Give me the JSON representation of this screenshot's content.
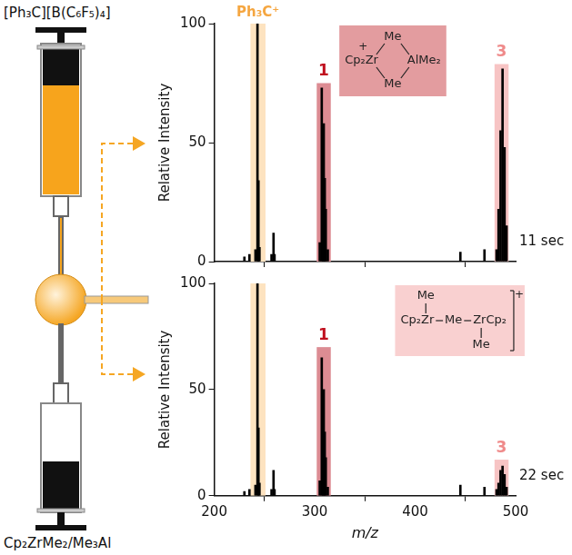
{
  "diagram": {
    "top_reagent": "[Ph₃C][B(C₆F₅)₄]",
    "bottom_reagent": "Cp₂ZrMe₂/Me₃Al"
  },
  "chart_data": [
    {
      "type": "bar",
      "x": [
        230,
        235,
        241,
        243,
        244,
        245,
        257,
        259,
        260,
        305,
        307,
        308,
        309,
        310,
        311,
        313,
        445,
        469,
        481,
        483,
        485,
        487,
        489,
        491
      ],
      "values": [
        2,
        3,
        5,
        100,
        34,
        6,
        3,
        12,
        3,
        8,
        73,
        42,
        58,
        35,
        22,
        5,
        4,
        5,
        5,
        22,
        55,
        81,
        48,
        15
      ],
      "color": "#000000",
      "xlim": [
        200,
        500
      ],
      "xticks": [
        200,
        300,
        400,
        500
      ],
      "ylim": [
        0,
        100
      ],
      "yticks": [
        0,
        50,
        100
      ],
      "y_label": "Relative Intensity",
      "tick_labels": "y",
      "grid": false,
      "time_label": "11 sec",
      "highlights": [
        {
          "label": "Ph₃C⁺",
          "range": [
            236,
            251
          ],
          "height": 100,
          "color": "#fde3c0",
          "label_color": "#f5a640"
        },
        {
          "label": "1",
          "range": [
            302,
            316
          ],
          "height": 75,
          "color": "#dc8c93",
          "label_color": "#c0101e"
        },
        {
          "label": "3",
          "range": [
            479,
            493
          ],
          "height": 83,
          "color": "#f7c4c4",
          "label_color": "#ef8a8a"
        }
      ],
      "structure": {
        "color": "#e39c9f",
        "left": "Cp₂Zr",
        "charge": "+",
        "bridges": [
          "Me",
          "Me"
        ],
        "right": "AlMe₂"
      }
    },
    {
      "type": "bar",
      "x": [
        230,
        235,
        241,
        243,
        244,
        245,
        257,
        259,
        260,
        305,
        307,
        308,
        309,
        310,
        311,
        313,
        445,
        469,
        481,
        483,
        485,
        487,
        489,
        491
      ],
      "values": [
        2,
        3,
        5,
        100,
        32,
        6,
        3,
        12,
        3,
        7,
        65,
        38,
        50,
        30,
        18,
        4,
        5,
        4,
        3,
        6,
        12,
        14,
        10,
        4
      ],
      "color": "#000000",
      "xlim": [
        200,
        500
      ],
      "xticks": [
        200,
        300,
        400,
        500
      ],
      "ylim": [
        0,
        100
      ],
      "yticks": [
        0,
        50,
        100
      ],
      "x_label": "m/z",
      "y_label": "Relative Intensity",
      "grid": false,
      "time_label": "22 sec",
      "highlights": [
        {
          "range": [
            236,
            251
          ],
          "height": 100,
          "color": "#fde3c0"
        },
        {
          "label": "1",
          "range": [
            302,
            316
          ],
          "height": 70,
          "color": "#dc8c93",
          "label_color": "#c0101e"
        },
        {
          "label": "3",
          "range": [
            479,
            493
          ],
          "height": 17,
          "color": "#f7c4c4",
          "label_color": "#ef8a8a"
        }
      ],
      "structure": {
        "color": "#f9d0d0",
        "left": "Cp₂Zr",
        "left_me": "Me",
        "bridge": "Me",
        "right": "ZrCp₂",
        "right_me": "Me",
        "charge": "+"
      }
    }
  ]
}
